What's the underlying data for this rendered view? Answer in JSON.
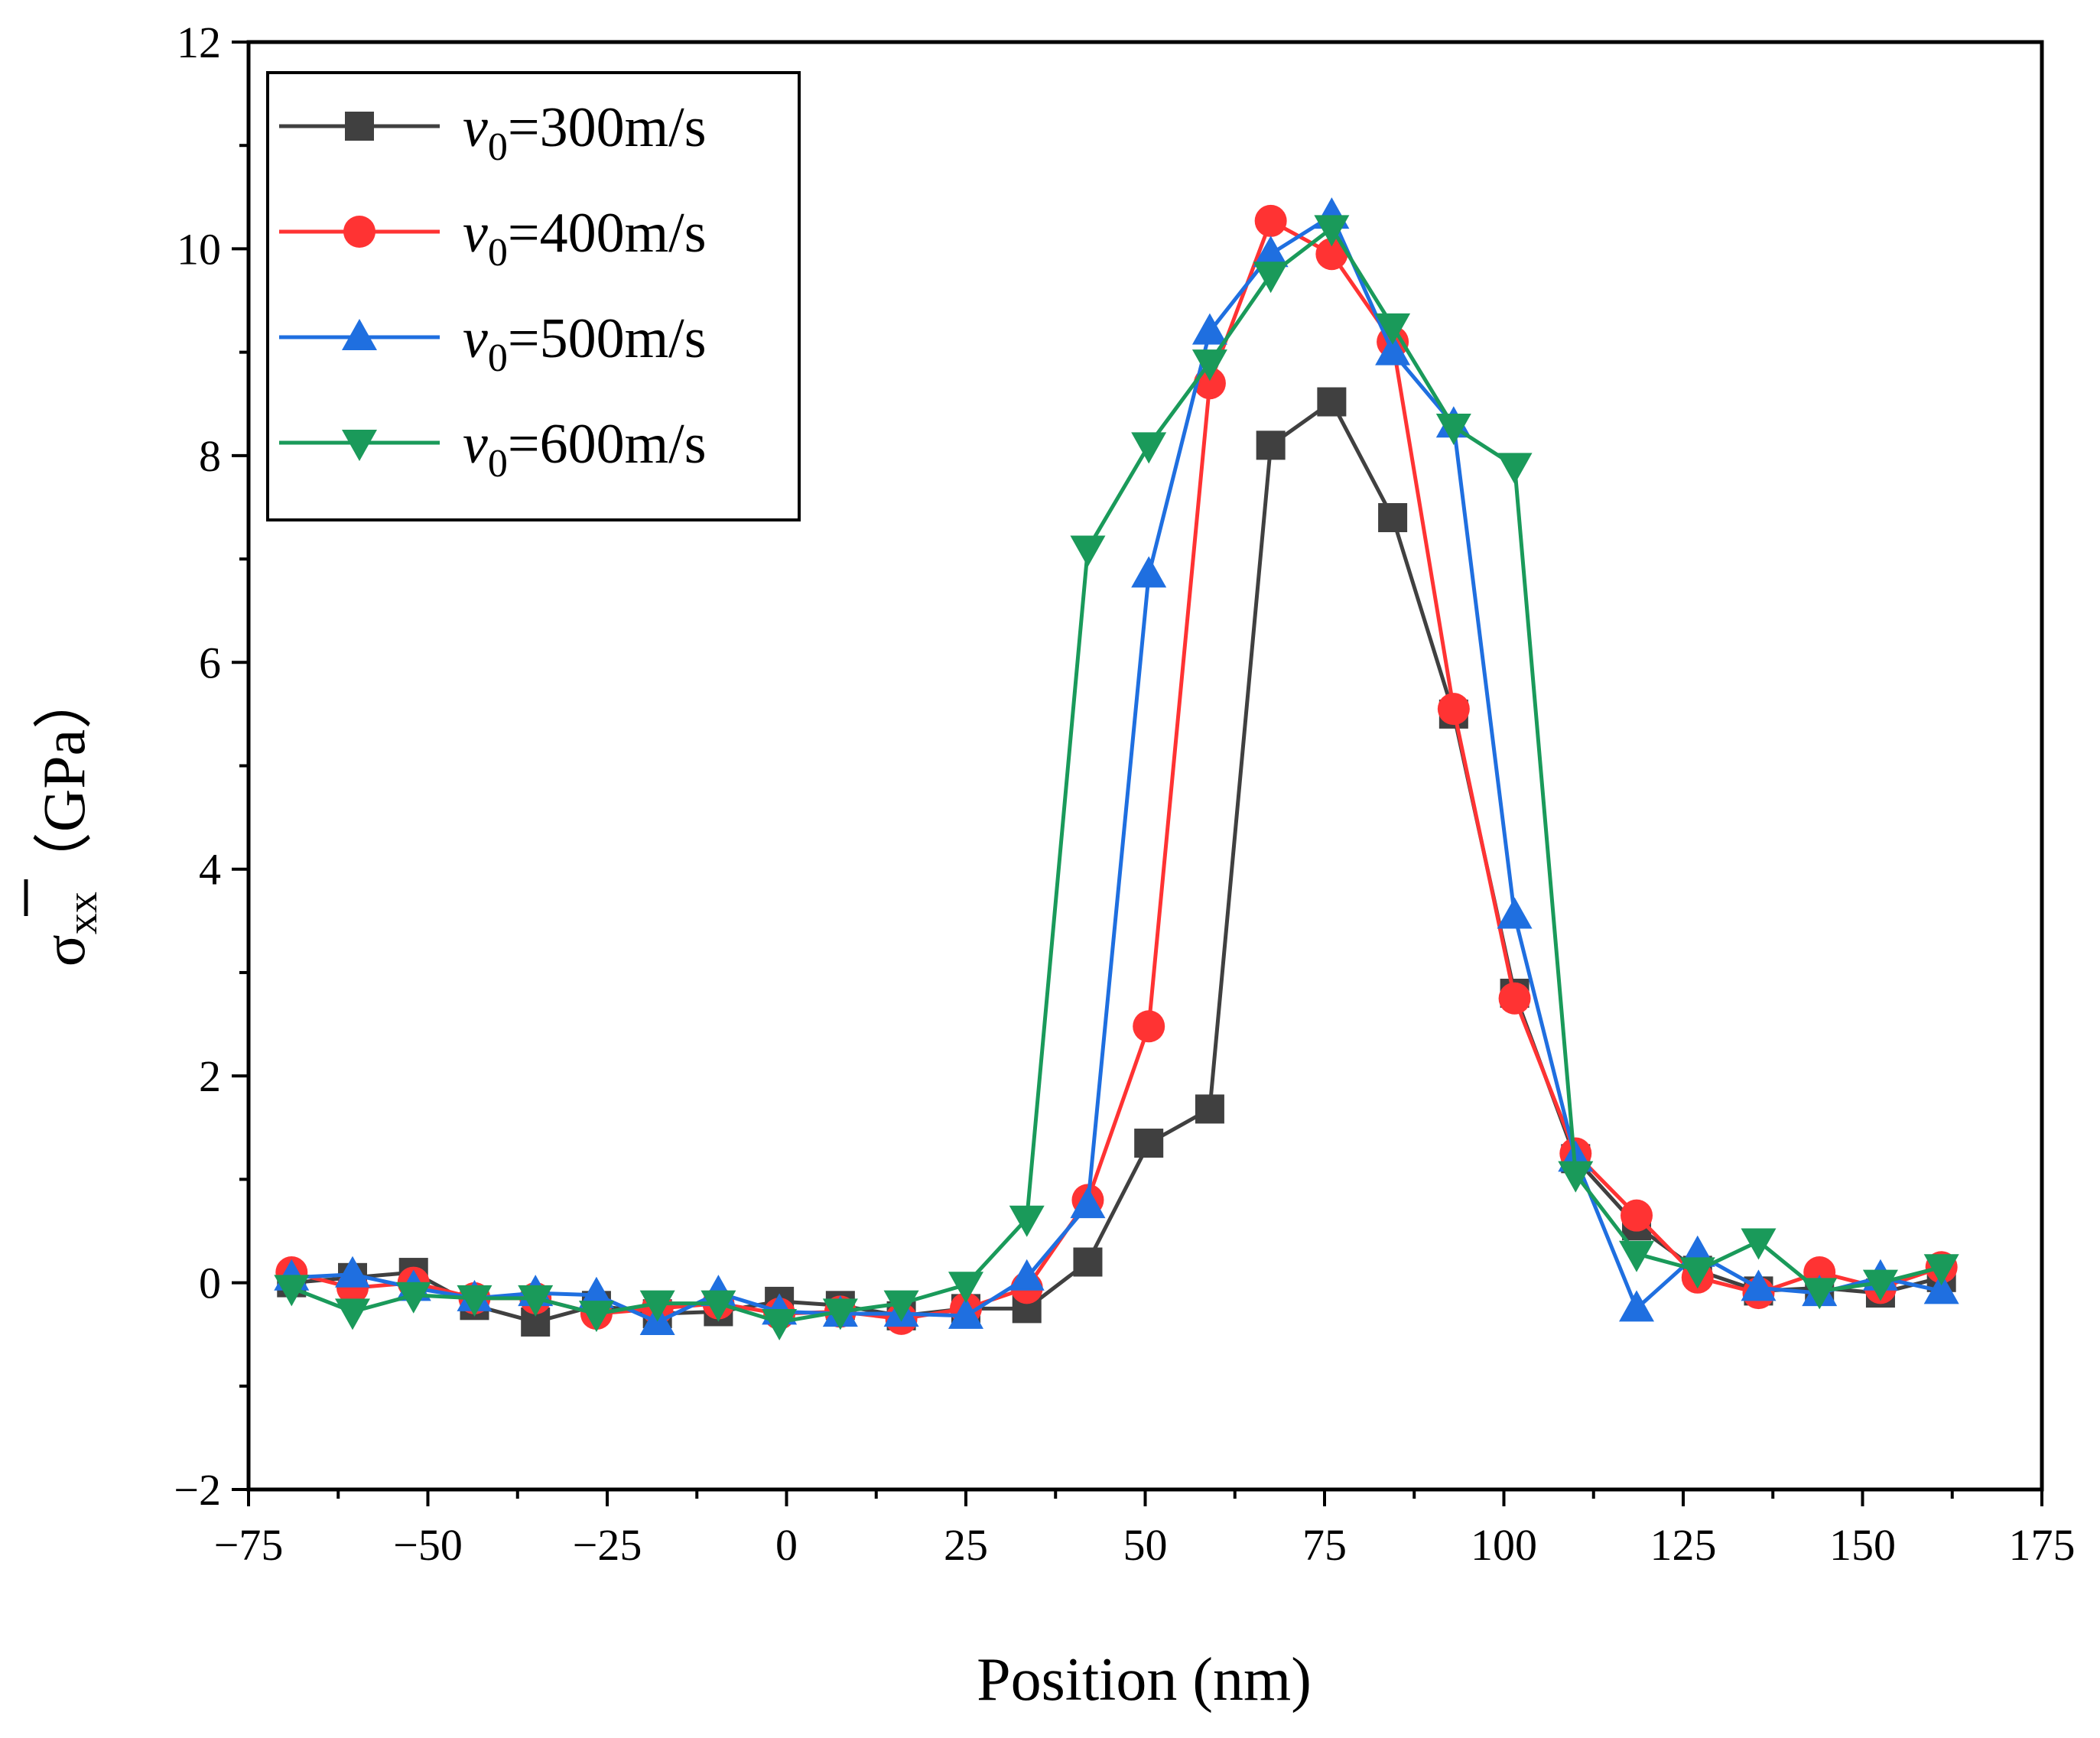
{
  "chart_data": {
    "type": "line",
    "xlabel": "Position (nm)",
    "ylabel": {
      "symbol": "σ",
      "subscript": "xx",
      "unit": "（GPa）"
    },
    "xlim": [
      -75,
      175
    ],
    "ylim": [
      -2,
      12
    ],
    "xticks": [
      -75,
      -50,
      -25,
      0,
      25,
      50,
      75,
      100,
      125,
      150,
      175
    ],
    "xtick_labels": [
      "−75",
      "−50",
      "−25",
      "0",
      "25",
      "50",
      "75",
      "100",
      "125",
      "150",
      "175"
    ],
    "yticks": [
      -2,
      0,
      2,
      4,
      6,
      8,
      10,
      12
    ],
    "ytick_labels": [
      "−2",
      "0",
      "2",
      "4",
      "6",
      "8",
      "10",
      "12"
    ],
    "grid": false,
    "legend_position": "top-left",
    "x": [
      -69,
      -60.5,
      -52,
      -43.5,
      -35,
      -26.5,
      -18,
      -9.5,
      -1,
      7.5,
      16,
      25,
      33.5,
      42,
      50.5,
      59,
      67.5,
      76,
      84.5,
      93,
      101.5,
      110,
      118.5,
      127,
      135.5,
      144,
      152.5,
      161
    ],
    "series": [
      {
        "name_prefix": "v",
        "name_sub": "0",
        "name_suffix": "=300m/s",
        "color": "#404040",
        "marker": "square",
        "values": [
          0.0,
          0.05,
          0.1,
          -0.22,
          -0.38,
          -0.22,
          -0.3,
          -0.28,
          -0.18,
          -0.22,
          -0.32,
          -0.25,
          -0.25,
          0.2,
          1.35,
          1.68,
          8.1,
          8.52,
          7.4,
          5.5,
          2.8,
          1.2,
          0.55,
          0.12,
          -0.08,
          -0.05,
          -0.1,
          0.05
        ]
      },
      {
        "name_prefix": "v",
        "name_sub": "0",
        "name_suffix": "=400m/s",
        "color": "#ff3333",
        "marker": "circle",
        "values": [
          0.1,
          -0.05,
          0.0,
          -0.15,
          -0.15,
          -0.3,
          -0.25,
          -0.2,
          -0.3,
          -0.28,
          -0.35,
          -0.25,
          -0.05,
          0.8,
          2.48,
          8.7,
          10.27,
          9.95,
          9.1,
          5.55,
          2.75,
          1.25,
          0.65,
          0.05,
          -0.1,
          0.1,
          -0.05,
          0.15
        ]
      },
      {
        "name_prefix": "v",
        "name_sub": "0",
        "name_suffix": "=500m/s",
        "color": "#1f6fe0",
        "marker": "triangle-up",
        "values": [
          0.05,
          0.08,
          -0.05,
          -0.15,
          -0.1,
          -0.12,
          -0.38,
          -0.1,
          -0.28,
          -0.3,
          -0.3,
          -0.32,
          0.05,
          0.75,
          6.85,
          9.2,
          9.95,
          10.32,
          9.0,
          8.3,
          3.55,
          1.2,
          -0.25,
          0.28,
          -0.05,
          -0.1,
          0.05,
          -0.08
        ]
      },
      {
        "name_prefix": "v",
        "name_sub": "0",
        "name_suffix": "=600m/s",
        "color": "#1a9a5a",
        "marker": "triangle-down",
        "values": [
          -0.05,
          -0.28,
          -0.12,
          -0.15,
          -0.15,
          -0.3,
          -0.2,
          -0.2,
          -0.38,
          -0.28,
          -0.2,
          -0.02,
          0.62,
          7.1,
          8.1,
          8.9,
          9.75,
          10.2,
          9.25,
          8.28,
          7.9,
          1.05,
          0.28,
          0.12,
          0.4,
          -0.08,
          0.0,
          0.15
        ]
      }
    ]
  }
}
